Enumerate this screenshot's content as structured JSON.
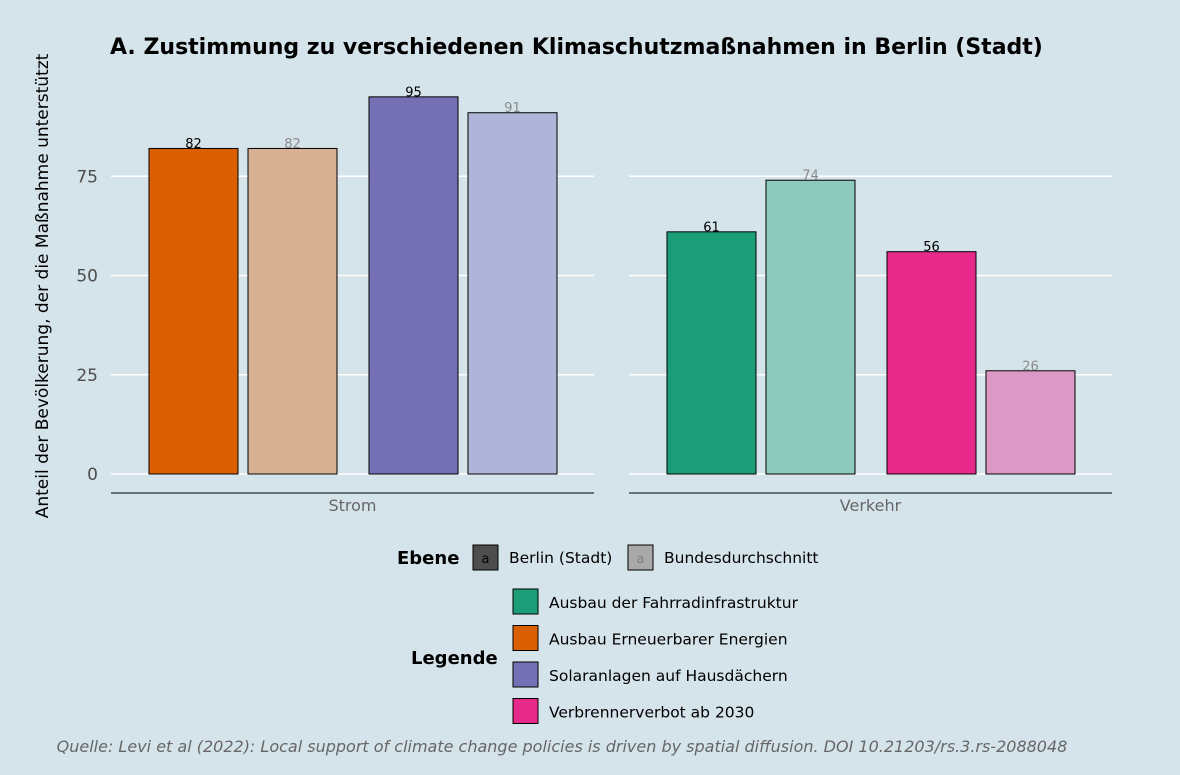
{
  "chart_data": {
    "type": "bar",
    "title": "A. Zustimmung zu verschiedenen Klimaschutzmaßnahmen in Berlin (Stadt)",
    "ylabel": "Anteil der Bevölkerung, der die Maßnahme unterstützt",
    "xlabel": "",
    "ylim": [
      0,
      100
    ],
    "yticks": [
      0,
      25,
      50,
      75
    ],
    "grid": true,
    "panels": [
      {
        "label": "Strom",
        "bars": [
          {
            "measure": "Ausbau Erneuerbarer Energien",
            "level": "Berlin (Stadt)",
            "value": 82
          },
          {
            "measure": "Ausbau Erneuerbarer Energien",
            "level": "Bundesdurchschnitt",
            "value": 82
          },
          {
            "measure": "Solaranlagen auf Hausdächern",
            "level": "Berlin (Stadt)",
            "value": 95
          },
          {
            "measure": "Solaranlagen auf Hausdächern",
            "level": "Bundesdurchschnitt",
            "value": 91
          }
        ]
      },
      {
        "label": "Verkehr",
        "bars": [
          {
            "measure": "Ausbau der Fahrradinfrastruktur",
            "level": "Berlin (Stadt)",
            "value": 61
          },
          {
            "measure": "Ausbau der Fahrradinfrastruktur",
            "level": "Bundesdurchschnitt",
            "value": 74
          },
          {
            "measure": "Verbrennerverbot ab 2030",
            "level": "Berlin (Stadt)",
            "value": 56
          },
          {
            "measure": "Verbrennerverbot ab 2030",
            "level": "Bundesdurchschnitt",
            "value": 26
          }
        ]
      }
    ],
    "level_legend": {
      "title": "Ebene",
      "glyph": "a",
      "items": [
        {
          "name": "Berlin (Stadt)",
          "fill": "#4d4d4d",
          "glyph_color": "#000000"
        },
        {
          "name": "Bundesdurchschnitt",
          "fill": "#a9a9a9",
          "glyph_color": "#808080"
        }
      ]
    },
    "legend": {
      "title": "Legende",
      "placement": "bottom",
      "items": [
        {
          "name": "Ausbau der Fahrradinfrastruktur",
          "color": "#1b9e77",
          "light": "#8dc9bc"
        },
        {
          "name": "Ausbau Erneuerbarer Energien",
          "color": "#d95f02",
          "light": "#d8b093"
        },
        {
          "name": "Solaranlagen auf Hausdächern",
          "color": "#7570b3",
          "light": "#afb5d8"
        },
        {
          "name": "Verbrennerverbot ab 2030",
          "color": "#e7298a",
          "light": "#dd99c5"
        }
      ]
    },
    "caption": "Quelle: Levi et al (2022): Local support of climate change policies is driven by spatial diffusion. DOI 10.21203/rs.3.rs-2088048"
  }
}
